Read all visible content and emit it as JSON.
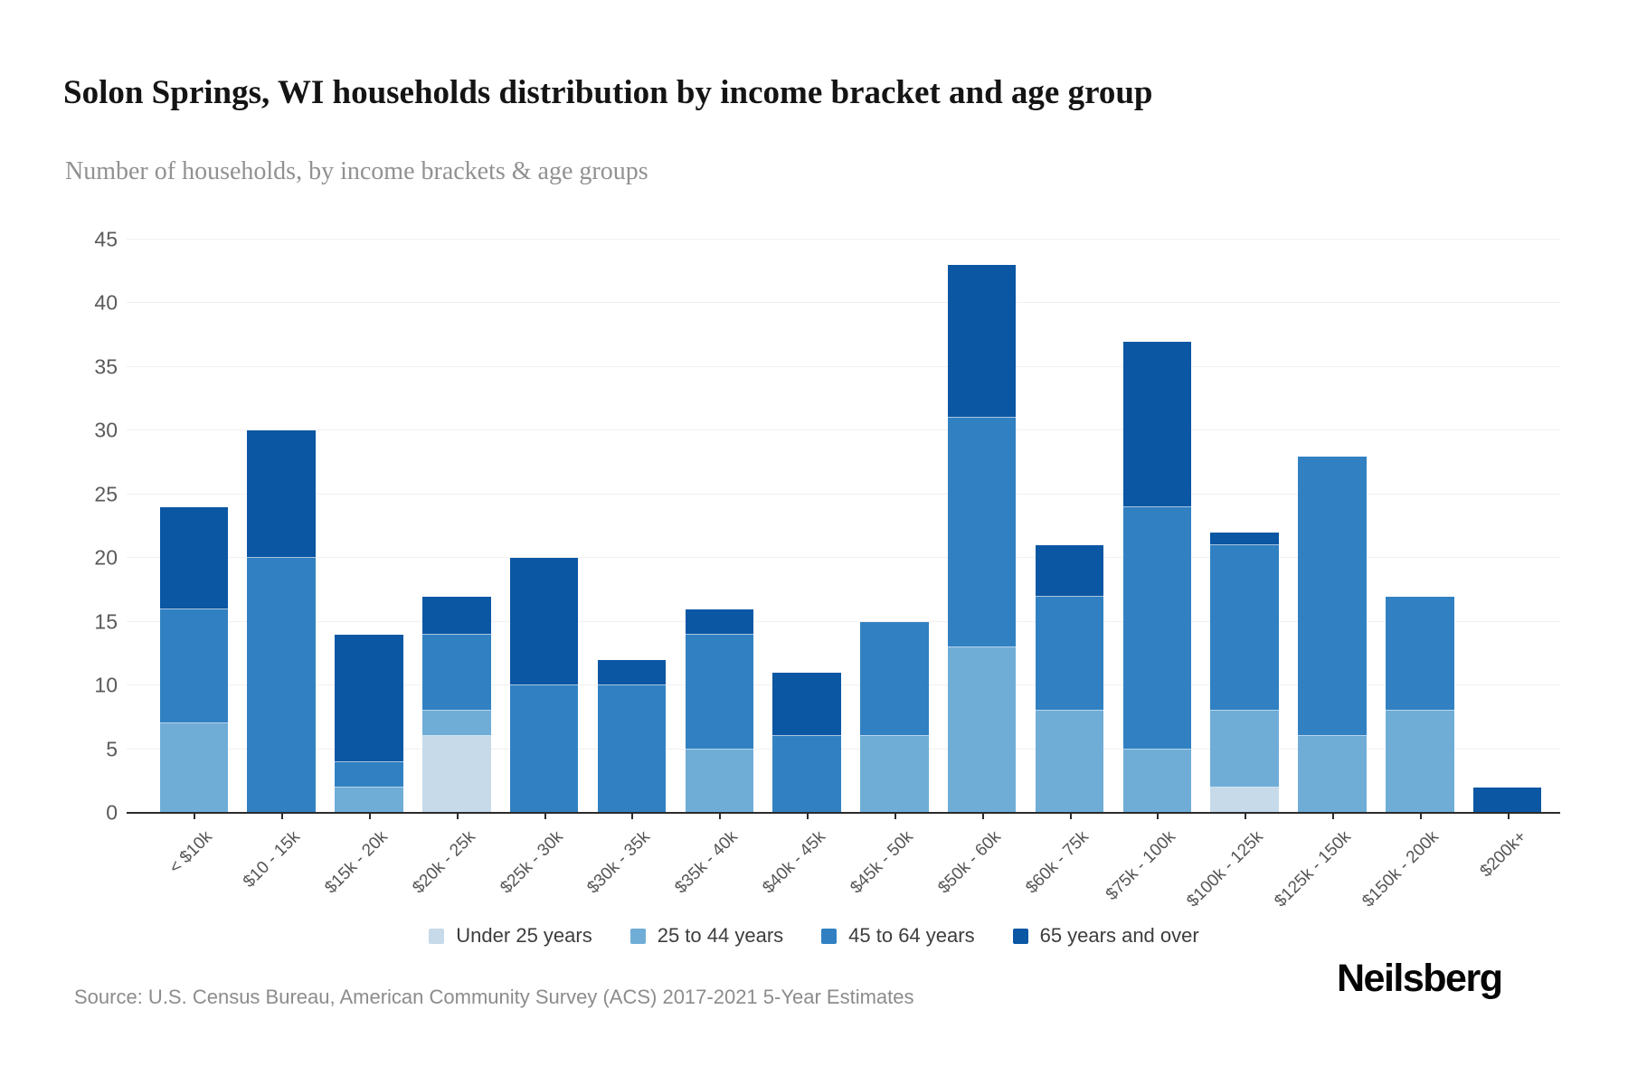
{
  "header": {
    "title": "Solon Springs, WI households distribution by income bracket and age group",
    "subtitle": "Number of households, by income brackets & age groups"
  },
  "chart_data": {
    "type": "bar",
    "stacked": true,
    "title": "Solon Springs, WI households distribution by income bracket and age group",
    "xlabel": "",
    "ylabel": "Number of households",
    "ylim": [
      0,
      45
    ],
    "yticks": [
      0,
      5,
      10,
      15,
      20,
      25,
      30,
      35,
      40,
      45
    ],
    "grid": "horizontal",
    "legend_position": "bottom",
    "categories": [
      "< $10k",
      "$10 - 15k",
      "$15k - 20k",
      "$20k - 25k",
      "$25k - 30k",
      "$30k - 35k",
      "$35k - 40k",
      "$40k - 45k",
      "$45k - 50k",
      "$50k - 60k",
      "$60k - 75k",
      "$75k - 100k",
      "$100k - 125k",
      "$125k - 150k",
      "$150k - 200k",
      "$200k+"
    ],
    "series": [
      {
        "name": "Under 25 years",
        "color": "#c6daea",
        "values": [
          0,
          0,
          0,
          6,
          0,
          0,
          0,
          0,
          0,
          0,
          0,
          0,
          2,
          0,
          0,
          0
        ]
      },
      {
        "name": "25 to 44 years",
        "color": "#6fadd7",
        "values": [
          7,
          0,
          2,
          2,
          0,
          0,
          5,
          0,
          6,
          13,
          8,
          5,
          6,
          6,
          8,
          0
        ]
      },
      {
        "name": "45 to 64 years",
        "color": "#3181c2",
        "values": [
          9,
          20,
          2,
          6,
          10,
          10,
          9,
          6,
          9,
          18,
          9,
          19,
          13,
          22,
          9,
          0
        ]
      },
      {
        "name": "65 years and over",
        "color": "#0b57a4",
        "values": [
          8,
          10,
          10,
          3,
          10,
          2,
          2,
          5,
          0,
          12,
          4,
          13,
          1,
          0,
          0,
          2
        ]
      }
    ],
    "totals": [
      24,
      30,
      14,
      17,
      20,
      12,
      16,
      11,
      15,
      43,
      21,
      37,
      22,
      28,
      17,
      2
    ]
  },
  "footer": {
    "source": "Source: U.S. Census Bureau, American Community Survey (ACS) 2017-2021 5-Year Estimates",
    "logo": "Neilsberg"
  }
}
